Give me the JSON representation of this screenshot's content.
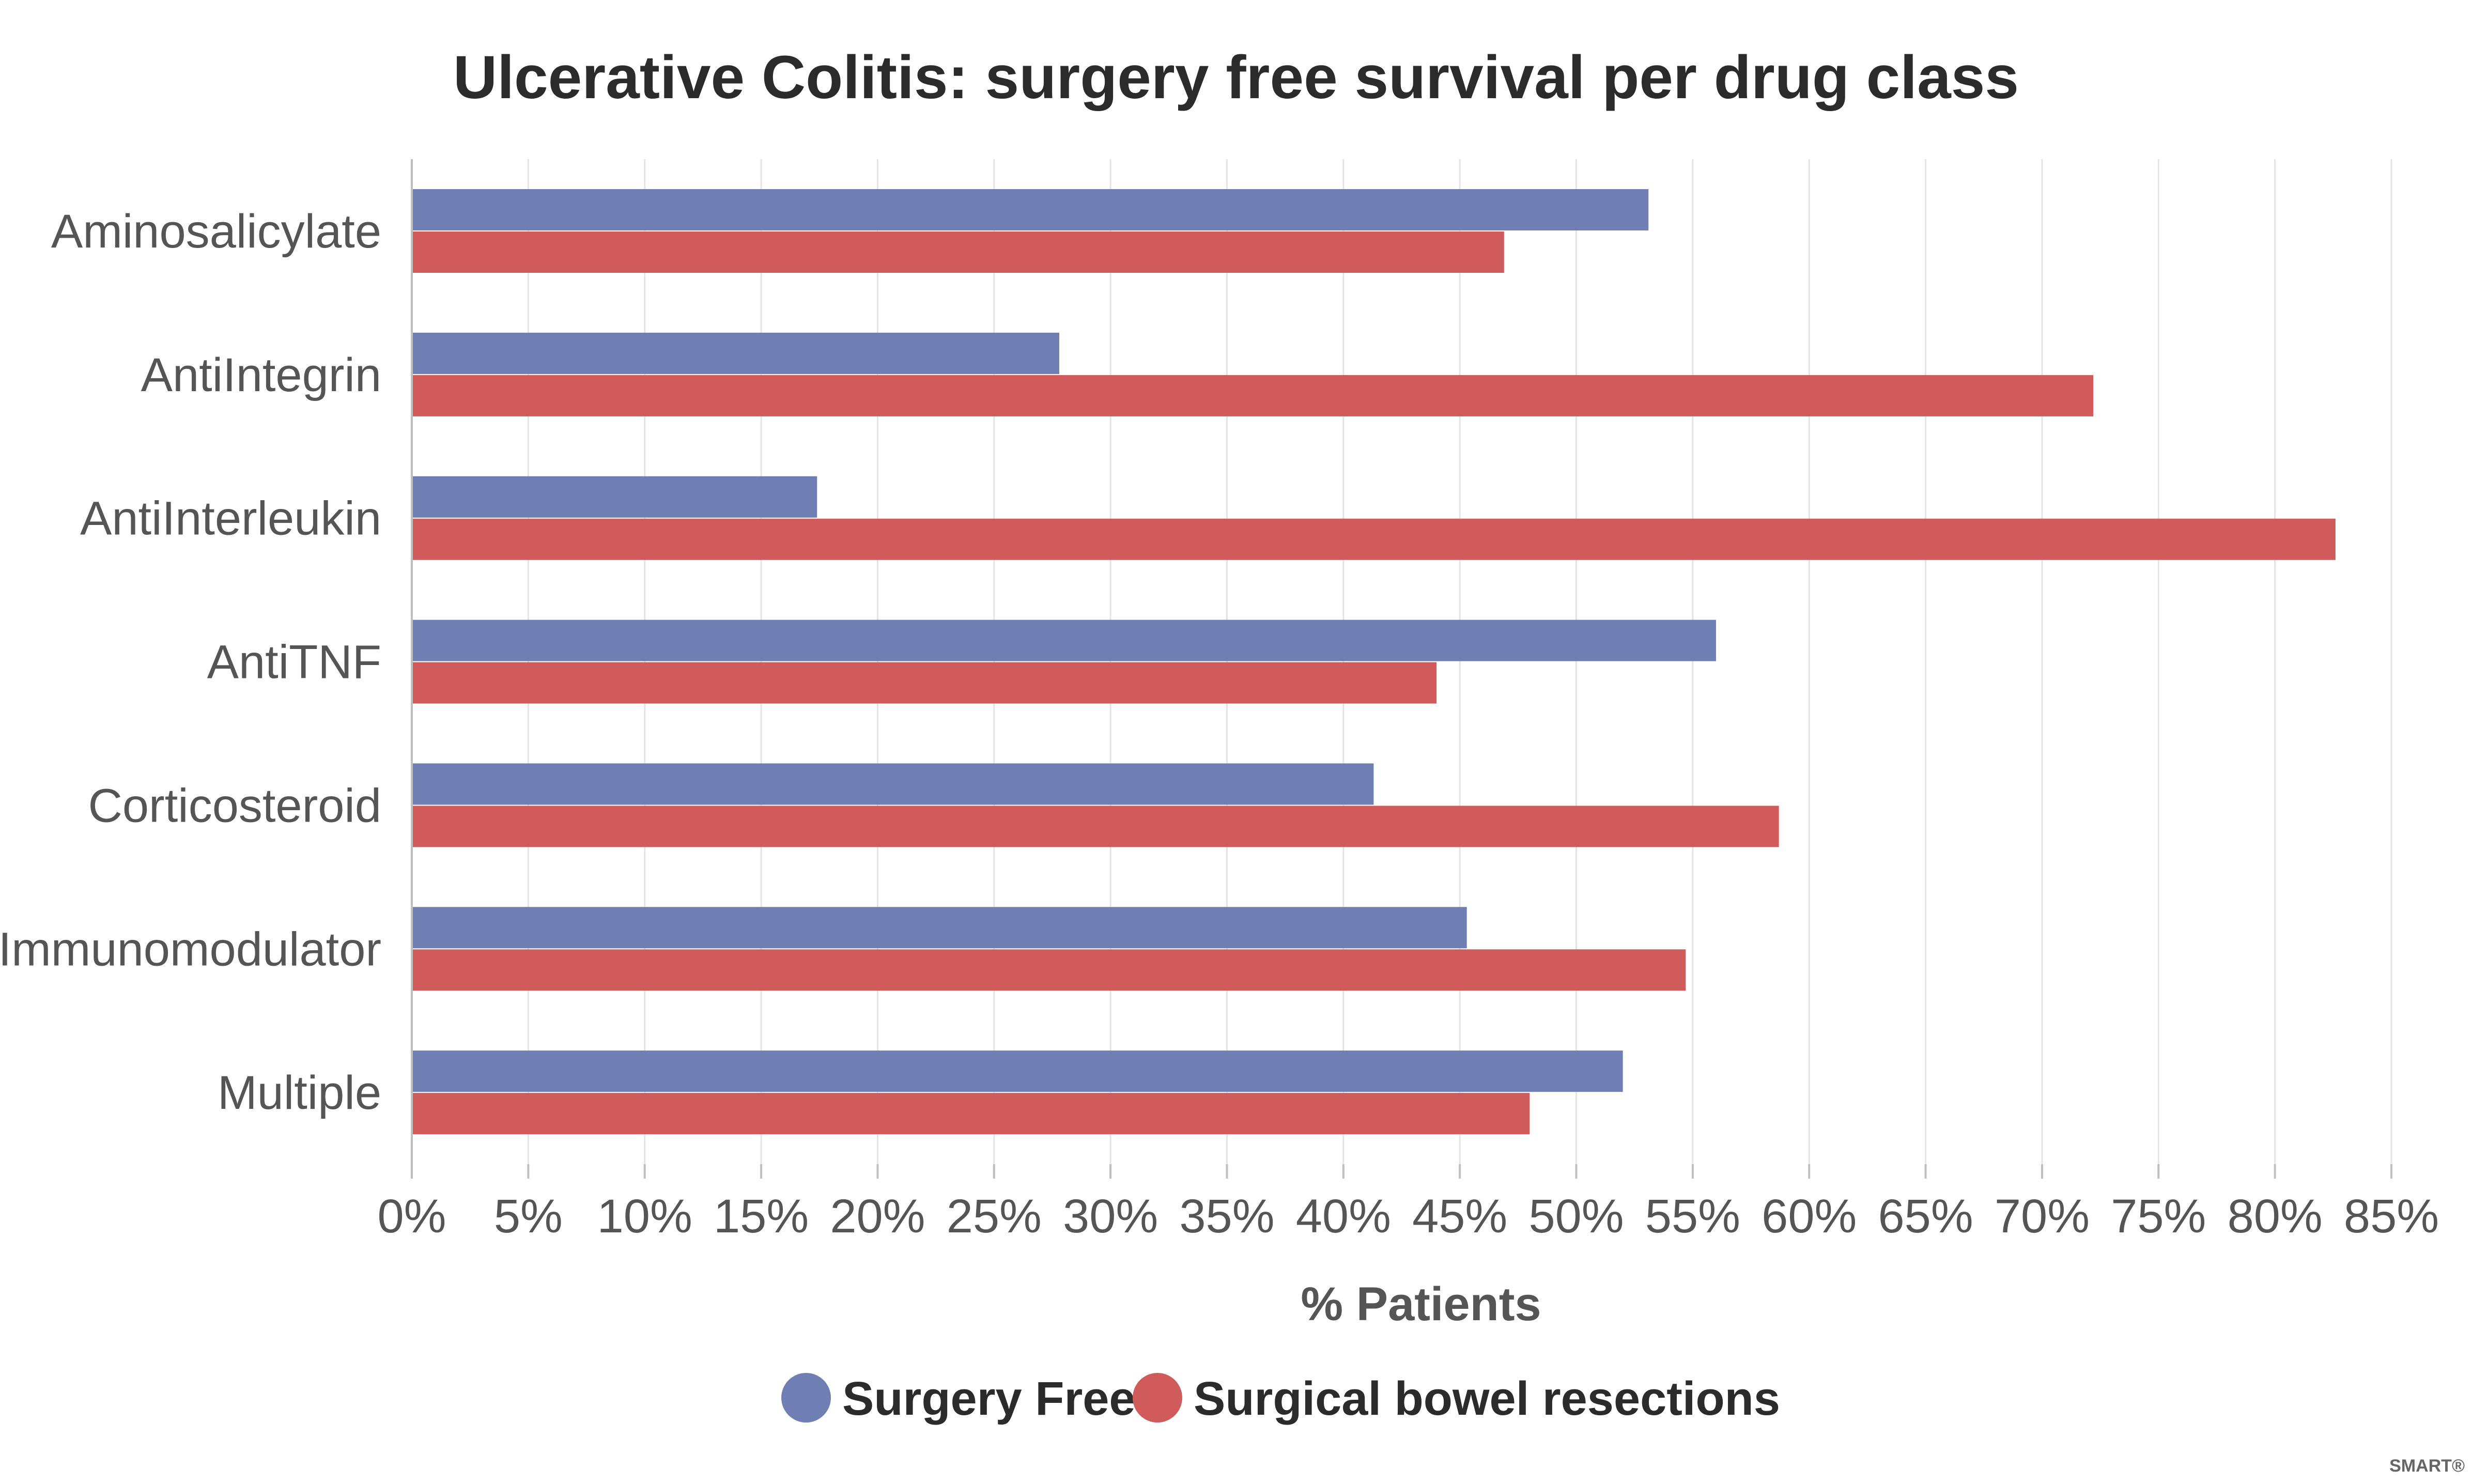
{
  "chart_data": {
    "type": "bar",
    "orientation": "horizontal",
    "title": "Ulcerative Colitis: surgery free survival per drug class",
    "xlabel": "% Patients",
    "ylabel": "",
    "categories": [
      "Aminosalicylate",
      "AntiIntegrin",
      "AntiInterleukin",
      "AntiTNF",
      "Corticosteroid",
      "Immunomodulator",
      "Multiple"
    ],
    "series": [
      {
        "name": "Surgery Free",
        "color": "#6f7fb4",
        "values": [
          53.1,
          27.8,
          17.4,
          56.0,
          41.3,
          45.3,
          52.0
        ]
      },
      {
        "name": "Surgical bowel resections",
        "color": "#d05b5b",
        "values": [
          46.9,
          72.2,
          82.6,
          44.0,
          58.7,
          54.7,
          48.0
        ]
      }
    ],
    "xlim": [
      0,
      85
    ],
    "x_ticks": [
      "0%",
      "5%",
      "10%",
      "15%",
      "20%",
      "25%",
      "30%",
      "35%",
      "40%",
      "45%",
      "50%",
      "55%",
      "60%",
      "65%",
      "70%",
      "75%",
      "80%",
      "85%"
    ],
    "grid": true,
    "legend": "bottom-center"
  },
  "watermark": "SMART®"
}
